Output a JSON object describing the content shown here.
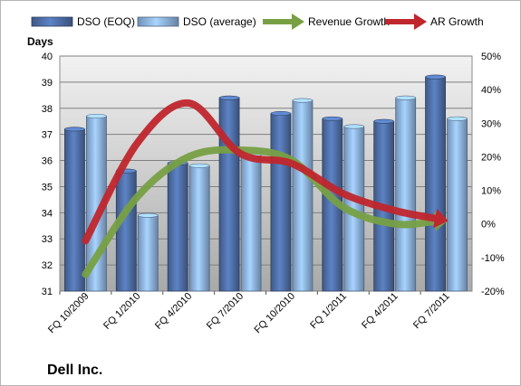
{
  "chart_data": {
    "type": "bar",
    "categories": [
      "FQ 10/2009",
      "FQ 1/2010",
      "FQ 4/2010",
      "FQ 7/2010",
      "FQ 10/2010",
      "FQ 1/2011",
      "FQ 4/2011",
      "FQ 7/2011"
    ],
    "series": [
      {
        "name": "DSO (EOQ)",
        "type": "bar",
        "axis": "left",
        "color": "#4f6fa8",
        "values": [
          37.2,
          35.6,
          35.9,
          38.4,
          37.8,
          37.6,
          37.5,
          39.2
        ]
      },
      {
        "name": "DSO (average)",
        "type": "bar",
        "axis": "left",
        "color": "#8eb4e3",
        "values": [
          37.7,
          33.9,
          35.8,
          36.2,
          38.3,
          37.3,
          38.4,
          37.6
        ]
      },
      {
        "name": "Revenue Growth",
        "type": "line",
        "axis": "right",
        "color": "#77a044",
        "values": [
          -15,
          8,
          20,
          22,
          19,
          5,
          0,
          1
        ]
      },
      {
        "name": "AR Growth",
        "type": "line",
        "axis": "right",
        "color": "#c0262d",
        "values": [
          -5,
          24,
          36,
          21,
          18,
          9,
          4,
          1
        ]
      }
    ],
    "ylabel": "Days",
    "ylim": [
      31,
      40
    ],
    "yticks": [
      "31",
      "32",
      "33",
      "34",
      "35",
      "36",
      "37",
      "38",
      "39",
      "40"
    ],
    "y2lim": [
      -20,
      50
    ],
    "y2ticks": [
      "-20%",
      "-10%",
      "0%",
      "10%",
      "20%",
      "30%",
      "40%",
      "50%"
    ],
    "legend_position": "top",
    "grid": true,
    "plot_background": "#c0c0c0"
  },
  "company": "Dell Inc."
}
